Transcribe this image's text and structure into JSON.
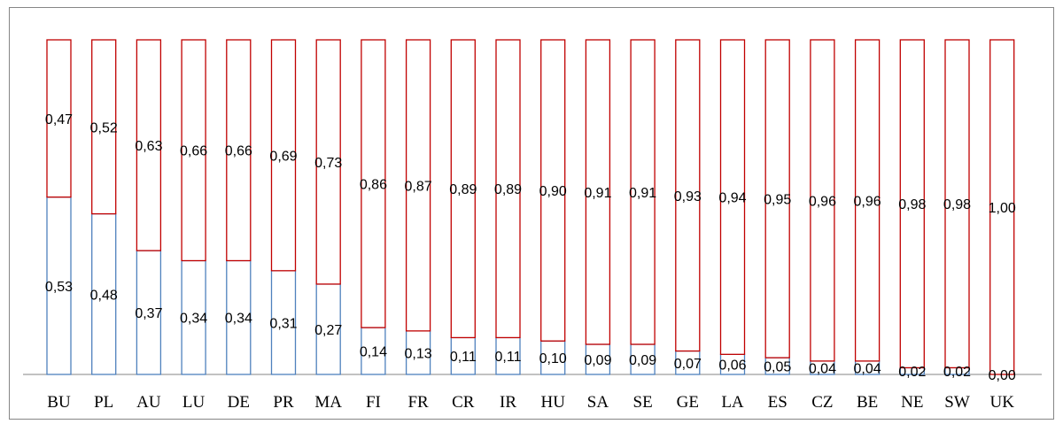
{
  "chart_data": {
    "type": "bar",
    "stacked": true,
    "normalized": true,
    "categories": [
      "BU",
      "PL",
      "AU",
      "LU",
      "DE",
      "PR",
      "MA",
      "FI",
      "FR",
      "CR",
      "IR",
      "HU",
      "SA",
      "SE",
      "GE",
      "LA",
      "ES",
      "CZ",
      "BE",
      "NE",
      "SW",
      "UK"
    ],
    "series": [
      {
        "values": [
          0.53,
          0.48,
          0.37,
          0.34,
          0.34,
          0.31,
          0.27,
          0.14,
          0.13,
          0.11,
          0.11,
          0.1,
          0.09,
          0.09,
          0.07,
          0.06,
          0.05,
          0.04,
          0.04,
          0.02,
          0.02,
          0.0
        ],
        "labels": [
          "0,53",
          "0,48",
          "0,37",
          "0,34",
          "0,34",
          "0,31",
          "0,27",
          "0,14",
          "0,13",
          "0,11",
          "0,11",
          "0,10",
          "0,09",
          "0,09",
          "0,07",
          "0,06",
          "0,05",
          "0,04",
          "0,04",
          "0,02",
          "0,02",
          "0,00"
        ],
        "color": "#4f81bd"
      },
      {
        "values": [
          0.47,
          0.52,
          0.63,
          0.66,
          0.66,
          0.69,
          0.73,
          0.86,
          0.87,
          0.89,
          0.89,
          0.9,
          0.91,
          0.91,
          0.93,
          0.94,
          0.95,
          0.96,
          0.96,
          0.98,
          0.98,
          1.0
        ],
        "labels": [
          "0,47",
          "0,52",
          "0,63",
          "0,66",
          "0,66",
          "0,69",
          "0,73",
          "0,86",
          "0,87",
          "0,89",
          "0,89",
          "0,90",
          "0,91",
          "0,91",
          "0,93",
          "0,94",
          "0,95",
          "0,96",
          "0,96",
          "0,98",
          "0,98",
          "1,00"
        ],
        "color": "#c00000"
      }
    ],
    "ylim": [
      0,
      1
    ],
    "grid": false,
    "legend": "none"
  }
}
